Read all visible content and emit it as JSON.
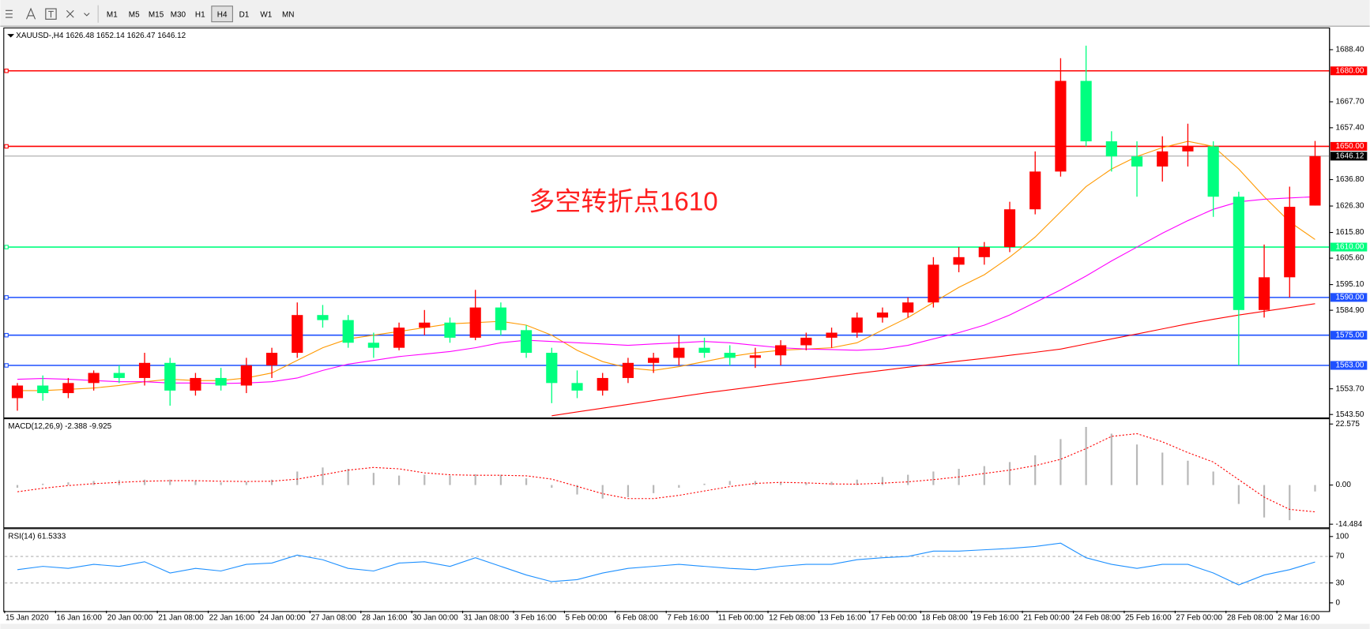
{
  "toolbar": {
    "timeframes": [
      "M1",
      "M5",
      "M15",
      "M30",
      "H1",
      "H4",
      "D1",
      "W1",
      "MN"
    ],
    "active": "H4"
  },
  "chart_data": [
    {
      "type": "candlestick",
      "title": "XAUUSD-,H4  1626.48 1652.14 1626.47 1646.12",
      "categories": [
        "15 Jan 2020",
        null,
        "16 Jan 16:00",
        null,
        "20 Jan 00:00",
        null,
        "21 Jan 08:00",
        null,
        "22 Jan 16:00",
        null,
        "24 Jan 00:00",
        null,
        "27 Jan 08:00",
        null,
        "28 Jan 16:00",
        null,
        "30 Jan 00:00",
        null,
        "31 Jan 08:00",
        null,
        "3 Feb 16:00",
        null,
        "5 Feb 00:00",
        null,
        "6 Feb 08:00",
        null,
        "7 Feb 16:00",
        null,
        "11 Feb 00:00",
        null,
        "12 Feb 08:00",
        null,
        "13 Feb 16:00",
        null,
        "17 Feb 00:00",
        null,
        "18 Feb 08:00",
        null,
        "19 Feb 16:00",
        null,
        "21 Feb 00:00",
        null,
        "24 Feb 08:00",
        null,
        "25 Feb 16:00",
        null,
        "27 Feb 00:00",
        null,
        "28 Feb 08:00",
        null,
        "2 Mar 16:00",
        null
      ],
      "ohlc": [
        [
          1550,
          1556,
          1545,
          1555
        ],
        [
          1555,
          1559,
          1549,
          1552
        ],
        [
          1552,
          1558,
          1550,
          1556
        ],
        [
          1556,
          1561,
          1553,
          1560
        ],
        [
          1560,
          1563,
          1556,
          1558
        ],
        [
          1558,
          1568,
          1555,
          1564
        ],
        [
          1564,
          1566,
          1547,
          1553
        ],
        [
          1553,
          1560,
          1551,
          1558
        ],
        [
          1558,
          1562,
          1553,
          1555
        ],
        [
          1555,
          1566,
          1552,
          1563
        ],
        [
          1563,
          1570,
          1558,
          1568
        ],
        [
          1568,
          1588,
          1566,
          1583
        ],
        [
          1583,
          1587,
          1578,
          1581
        ],
        [
          1581,
          1583,
          1570,
          1572
        ],
        [
          1572,
          1576,
          1566,
          1570
        ],
        [
          1570,
          1580,
          1569,
          1578
        ],
        [
          1578,
          1585,
          1575,
          1580
        ],
        [
          1580,
          1582,
          1572,
          1574
        ],
        [
          1574,
          1593,
          1573,
          1586
        ],
        [
          1586,
          1588,
          1575,
          1577
        ],
        [
          1577,
          1579,
          1566,
          1568
        ],
        [
          1568,
          1570,
          1548,
          1556
        ],
        [
          1556,
          1561,
          1550,
          1553
        ],
        [
          1553,
          1560,
          1551,
          1558
        ],
        [
          1558,
          1566,
          1556,
          1564
        ],
        [
          1564,
          1568,
          1560,
          1566
        ],
        [
          1566,
          1575,
          1563,
          1570
        ],
        [
          1570,
          1574,
          1566,
          1568
        ],
        [
          1568,
          1571,
          1563,
          1566
        ],
        [
          1566,
          1570,
          1562,
          1567
        ],
        [
          1567,
          1573,
          1563,
          1571
        ],
        [
          1571,
          1576,
          1569,
          1574
        ],
        [
          1574,
          1578,
          1570,
          1576
        ],
        [
          1576,
          1584,
          1574,
          1582
        ],
        [
          1582,
          1586,
          1580,
          1584
        ],
        [
          1584,
          1590,
          1582,
          1588
        ],
        [
          1588,
          1606,
          1586,
          1603
        ],
        [
          1603,
          1610,
          1600,
          1606
        ],
        [
          1606,
          1612,
          1603,
          1610
        ],
        [
          1610,
          1628,
          1608,
          1625
        ],
        [
          1625,
          1648,
          1623,
          1640
        ],
        [
          1640,
          1685,
          1638,
          1676
        ],
        [
          1676,
          1690,
          1650,
          1652
        ],
        [
          1652,
          1656,
          1640,
          1646
        ],
        [
          1646,
          1652,
          1630,
          1642
        ],
        [
          1642,
          1654,
          1636,
          1648
        ],
        [
          1648,
          1659,
          1642,
          1650
        ],
        [
          1650,
          1652,
          1622,
          1630
        ],
        [
          1630,
          1632,
          1563,
          1585
        ],
        [
          1585,
          1611,
          1582,
          1598
        ],
        [
          1598,
          1634,
          1590,
          1626
        ],
        [
          1626.48,
          1652.14,
          1626.47,
          1646.12
        ]
      ],
      "up_color": "#ff0000",
      "down_color": "#00ff7f",
      "series": [
        {
          "color": "#ff9900",
          "values": [
            1553,
            1553,
            1553.5,
            1554,
            1555,
            1556.5,
            1557.5,
            1557,
            1557,
            1558,
            1560,
            1565,
            1570,
            1573.5,
            1575,
            1576.5,
            1578,
            1579.5,
            1580,
            1580.5,
            1579,
            1575,
            1569,
            1564.5,
            1562,
            1561,
            1562.5,
            1564.5,
            1566.5,
            1568,
            1569,
            1569.5,
            1570,
            1572,
            1577,
            1582,
            1588,
            1594,
            1599,
            1606,
            1614,
            1624,
            1634,
            1641,
            1646,
            1649.5,
            1652,
            1650,
            1641,
            1630,
            1620,
            1613
          ]
        },
        {
          "color": "#ff00ff",
          "values": [
            1557.5,
            1557.8,
            1557.5,
            1557,
            1556.5,
            1556.5,
            1556,
            1556,
            1555.8,
            1556,
            1556.5,
            1558,
            1561,
            1563.5,
            1565,
            1566.5,
            1567.5,
            1568.5,
            1570,
            1572,
            1573,
            1572.5,
            1572,
            1571.5,
            1571,
            1571.5,
            1572,
            1572.5,
            1572,
            1571,
            1570,
            1569.5,
            1569.3,
            1569,
            1569.5,
            1571,
            1573.5,
            1576,
            1579,
            1583,
            1588,
            1593,
            1598.5,
            1604.5,
            1610,
            1615.5,
            1620.5,
            1625,
            1628,
            1629,
            1629.5,
            1630
          ]
        },
        {
          "color": "#ff0000",
          "values": [
            null,
            null,
            null,
            null,
            null,
            null,
            null,
            null,
            null,
            null,
            null,
            null,
            null,
            null,
            null,
            null,
            null,
            null,
            null,
            null,
            null,
            1543,
            1544.5,
            1546,
            1547.5,
            1549,
            1550.5,
            1552,
            1553.3,
            1554.6,
            1555.9,
            1557.2,
            1558.5,
            1559.8,
            1561,
            1562.3,
            1563.5,
            1564.7,
            1565.8,
            1567,
            1568.2,
            1569.5,
            1571.5,
            1573.5,
            1575.5,
            1577.5,
            1579.5,
            1581.3,
            1583,
            1584.5,
            1586,
            1587.5
          ]
        }
      ],
      "ylim": [
        1542.5,
        1696.7
      ],
      "yticks": [
        {
          "value": 1543.5,
          "label": "1543.50"
        },
        {
          "value": 1553.7,
          "label": "1553.70"
        },
        {
          "value": 1584.9,
          "label": "1584.90"
        },
        {
          "value": 1595.1,
          "label": "1595.10"
        },
        {
          "value": 1605.6,
          "label": "1605.60"
        },
        {
          "value": 1615.8,
          "label": "1615.80"
        },
        {
          "value": 1626.3,
          "label": "1626.30"
        },
        {
          "value": 1636.8,
          "label": "1636.80"
        },
        {
          "value": 1657.4,
          "label": "1657.40"
        },
        {
          "value": 1667.7,
          "label": "1667.70"
        },
        {
          "value": 1688.4,
          "label": "1688.40"
        }
      ],
      "levels": [
        {
          "value": 1680,
          "label": "1680.00",
          "color": "#ff0000"
        },
        {
          "value": 1650,
          "label": "1650.00",
          "color": "#ff0000"
        },
        {
          "value": 1610,
          "label": "1610.00",
          "color": "#00ff7f"
        },
        {
          "value": 1590,
          "label": "1590.00",
          "color": "#1e50ff"
        },
        {
          "value": 1575,
          "label": "1575.00",
          "color": "#1e50ff"
        },
        {
          "value": 1563,
          "label": "1563.00",
          "color": "#1e50ff"
        }
      ],
      "current_price": {
        "value": 1646.12,
        "label": "1646.12"
      },
      "annotation": {
        "text": "多空转折点1610",
        "color": "#ff2020"
      }
    },
    {
      "type": "macd",
      "title": "MACD(12,26,9) -2.388 -9.925",
      "series": [
        {
          "style": "histogram",
          "color": "#b8b8b8",
          "values": [
            -1,
            0.5,
            1,
            1.5,
            1.8,
            2,
            2,
            1.5,
            1,
            1.2,
            2,
            5,
            6.5,
            6,
            4.5,
            3.5,
            3.8,
            3.5,
            4,
            3.8,
            2.5,
            -1,
            -3.5,
            -5,
            -4.5,
            -3,
            -1,
            0.5,
            1.5,
            1.5,
            1,
            0.8,
            1.2,
            2,
            3,
            3.8,
            5,
            6,
            7,
            8.5,
            11,
            17,
            21.5,
            19,
            15,
            12,
            9,
            5,
            -7,
            -12,
            -13,
            -2.388
          ]
        },
        {
          "style": "dotted",
          "color": "#ff0000",
          "values": [
            -2.5,
            -1.2,
            -0.2,
            0.5,
            1,
            1.4,
            1.6,
            1.6,
            1.4,
            1.3,
            1.4,
            2.2,
            3.8,
            5.5,
            6.5,
            6,
            4.5,
            3.8,
            3.6,
            3.6,
            3.4,
            2.2,
            -0.5,
            -3.2,
            -5,
            -5,
            -3.8,
            -2.2,
            -0.6,
            0.6,
            1,
            0.8,
            0.4,
            0.3,
            0.7,
            1.2,
            2,
            3,
            4.3,
            5.5,
            7.2,
            9.5,
            13.5,
            18,
            19,
            16,
            12,
            8.5,
            2,
            -4.5,
            -9,
            -9.925
          ]
        }
      ],
      "ylim": [
        -15.5,
        24.2
      ],
      "yticks": [
        22.575,
        {
          "value": 0,
          "label": "0.00"
        },
        -14.484
      ]
    },
    {
      "type": "line",
      "title": "RSI(14) 61.5333",
      "series": [
        {
          "color": "#1e90ff",
          "values": [
            50,
            55,
            52,
            58,
            55,
            62,
            45,
            52,
            48,
            58,
            60,
            72,
            65,
            52,
            48,
            60,
            62,
            55,
            68,
            55,
            42,
            32,
            35,
            45,
            52,
            55,
            58,
            55,
            52,
            50,
            55,
            58,
            58,
            65,
            68,
            70,
            78,
            78,
            80,
            82,
            85,
            90,
            68,
            58,
            52,
            58,
            58,
            45,
            27,
            42,
            50,
            61.5333
          ]
        }
      ],
      "ylim": [
        -11.8,
        110.5
      ],
      "yticks": [
        100,
        70,
        30,
        0
      ],
      "levels": [
        70,
        30
      ]
    }
  ]
}
